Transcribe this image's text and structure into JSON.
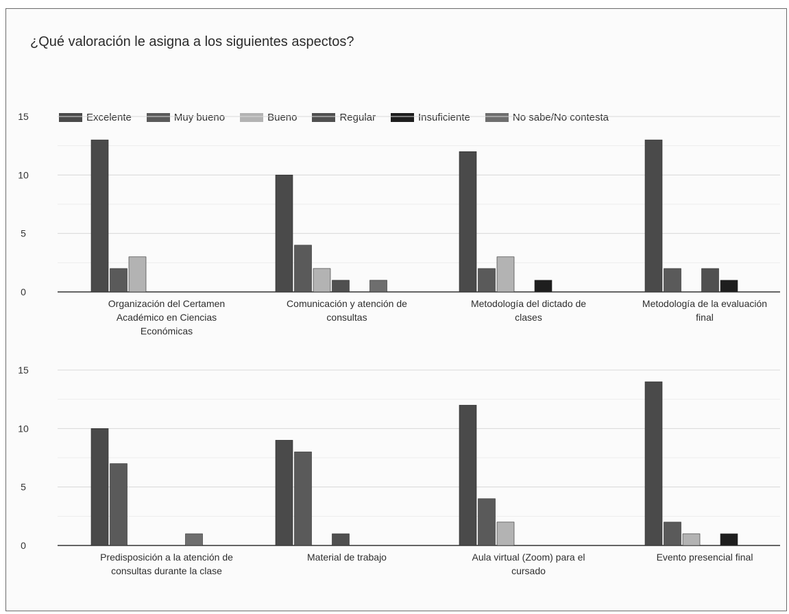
{
  "title": "¿Qué valoración le asigna a los siguientes aspectos?",
  "chart_data": {
    "type": "bar",
    "legend_position": "top",
    "grid": true,
    "ylim": [
      0,
      15
    ],
    "yticks": [
      0,
      5,
      10,
      15
    ],
    "series_names": [
      "Excelente",
      "Muy bueno",
      "Bueno",
      "Regular",
      "Insuficiente",
      "No sabe/No contesta"
    ],
    "colors": [
      "#4a4a4a",
      "#5a5a5a",
      "#b3b3b3",
      "#505050",
      "#1e1e1e",
      "#6e6e6e"
    ],
    "categories": [
      [
        "Organización del Certamen",
        "Académico en Ciencias",
        "Económicas"
      ],
      [
        "Comunicación y atención de",
        "consultas"
      ],
      [
        "Metodología del dictado de",
        "clases"
      ],
      [
        "Metodología de la evaluación",
        "final"
      ],
      [
        "Predisposición a la atención de",
        "consultas durante la clase"
      ],
      [
        "Material de trabajo"
      ],
      [
        "Aula virtual (Zoom) para el",
        "cursado"
      ],
      [
        "Evento presencial final"
      ]
    ],
    "values": [
      [
        13,
        2,
        3,
        0,
        0,
        0
      ],
      [
        10,
        4,
        2,
        1,
        0,
        1
      ],
      [
        12,
        2,
        3,
        0,
        1,
        0
      ],
      [
        13,
        2,
        0,
        2,
        1,
        0
      ],
      [
        10,
        7,
        0,
        0,
        0,
        1
      ],
      [
        9,
        8,
        0,
        1,
        0,
        0
      ],
      [
        12,
        4,
        2,
        0,
        0,
        0
      ],
      [
        14,
        2,
        1,
        0,
        1,
        0
      ]
    ]
  }
}
